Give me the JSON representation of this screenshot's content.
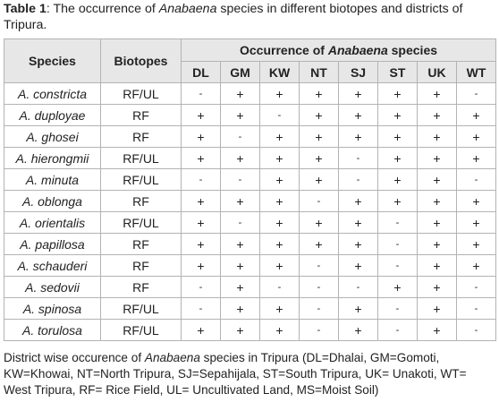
{
  "caption": {
    "label": "Table 1",
    "text_before": ": The occurrence of ",
    "genus": "Anabaena",
    "text_after": " species in different biotopes and districts of Tripura."
  },
  "table": {
    "col_species": "Species",
    "col_biotopes": "Biotopes",
    "group_before": "Occurrence of ",
    "group_genus": "Anabaena",
    "group_after": " species",
    "districts": [
      "DL",
      "GM",
      "KW",
      "NT",
      "SJ",
      "ST",
      "UK",
      "WT"
    ],
    "rows": [
      {
        "species": "A. constricta",
        "biotope": "RF/UL",
        "cells": [
          "-",
          "+",
          "+",
          "+",
          "+",
          "+",
          "+",
          "-"
        ]
      },
      {
        "species": "A. duployae",
        "biotope": "RF",
        "cells": [
          "+",
          "+",
          "-",
          "+",
          "+",
          "+",
          "+",
          "+"
        ]
      },
      {
        "species": "A. ghosei",
        "biotope": "RF",
        "cells": [
          "+",
          "-",
          "+",
          "+",
          "+",
          "+",
          "+",
          "+"
        ]
      },
      {
        "species": "A. hierongmii",
        "biotope": "RF/UL",
        "cells": [
          "+",
          "+",
          "+",
          "+",
          "-",
          "+",
          "+",
          "+"
        ]
      },
      {
        "species": "A. minuta",
        "biotope": "RF/UL",
        "cells": [
          "-",
          "-",
          "+",
          "+",
          "-",
          "+",
          "+",
          "-"
        ]
      },
      {
        "species": "A. oblonga",
        "biotope": "RF",
        "cells": [
          "+",
          "+",
          "+",
          "-",
          "+",
          "+",
          "+",
          "+"
        ]
      },
      {
        "species": "A. orientalis",
        "biotope": "RF/UL",
        "cells": [
          "+",
          "-",
          "+",
          "+",
          "+",
          "-",
          "+",
          "+"
        ]
      },
      {
        "species": "A. papillosa",
        "biotope": "RF",
        "cells": [
          "+",
          "+",
          "+",
          "+",
          "+",
          "-",
          "+",
          "+"
        ]
      },
      {
        "species": "A. schauderi",
        "biotope": "RF",
        "cells": [
          "+",
          "+",
          "+",
          "-",
          "+",
          "-",
          "+",
          "+"
        ]
      },
      {
        "species": "A. sedovii",
        "biotope": "RF",
        "cells": [
          "-",
          "+",
          "-",
          "-",
          "-",
          "+",
          "+",
          "-"
        ]
      },
      {
        "species": "A. spinosa",
        "biotope": "RF/UL",
        "cells": [
          "-",
          "+",
          "+",
          "-",
          "+",
          "-",
          "+",
          "-"
        ]
      },
      {
        "species": "A. torulosa",
        "biotope": "RF/UL",
        "cells": [
          "+",
          "+",
          "+",
          "-",
          "+",
          "-",
          "+",
          "-"
        ]
      }
    ]
  },
  "footnote": {
    "text_before": "District wise occurence of ",
    "genus": "Anabaena",
    "text_after": " species in Tripura (DL=Dhalai, GM=Gomoti, KW=Khowai, NT=North Tripura, SJ=Sepahijala, ST=South Tripura, UK= Unakoti, WT= West Tripura, RF= Rice Field, UL= Uncultivated Land, MS=Moist Soil)"
  }
}
